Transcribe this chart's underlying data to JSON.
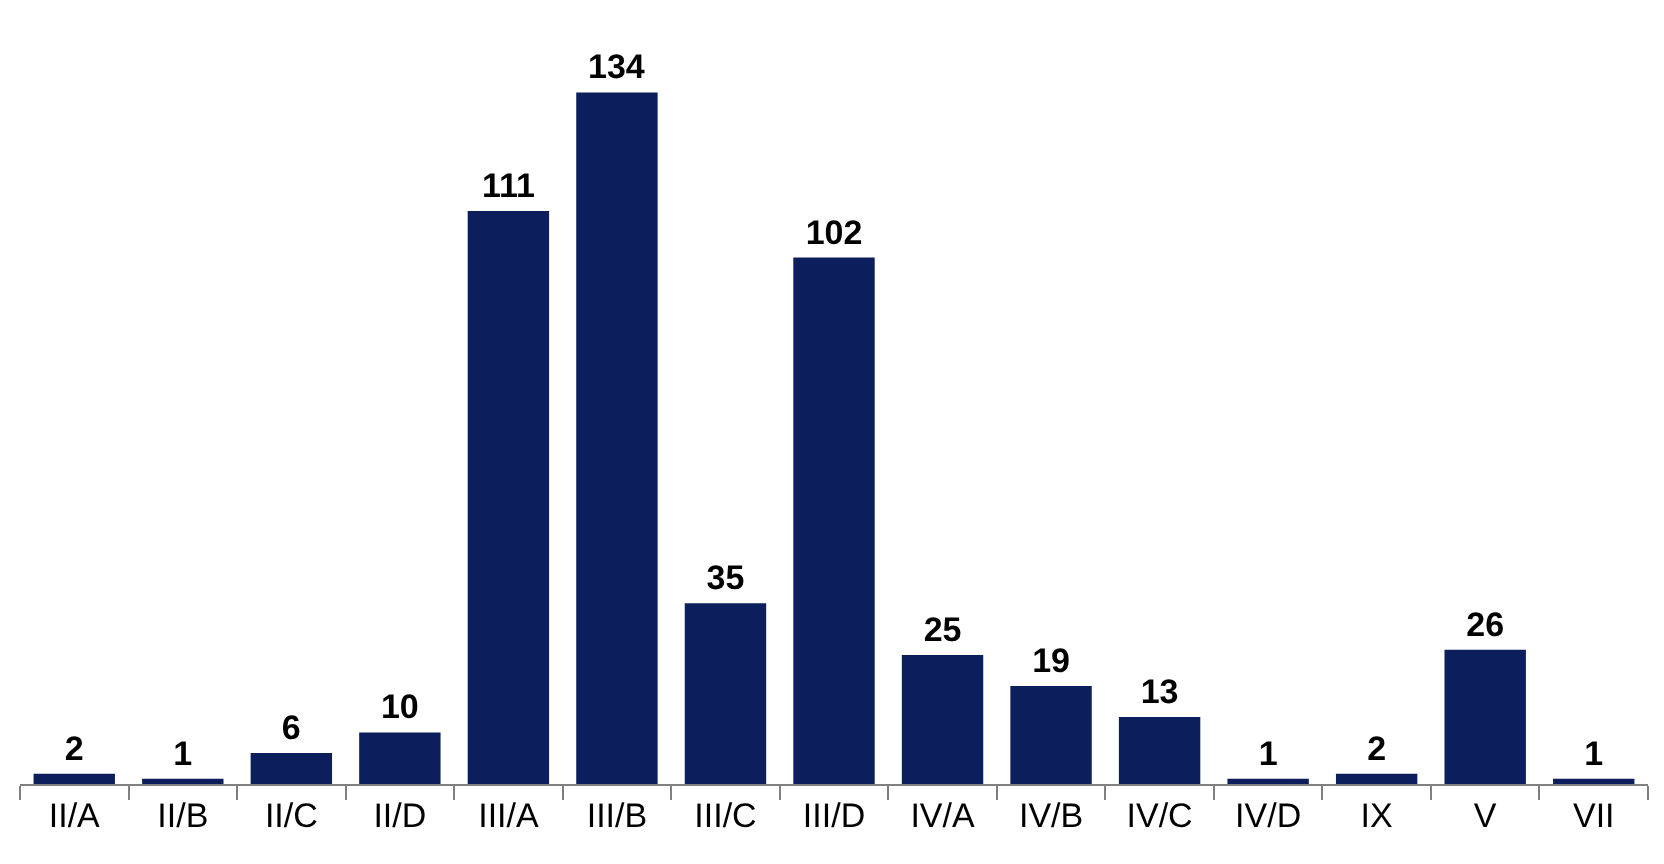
{
  "chart_data": {
    "type": "bar",
    "categories": [
      "II/A",
      "II/B",
      "II/C",
      "II/D",
      "III/A",
      "III/B",
      "III/C",
      "III/D",
      "IV/A",
      "IV/B",
      "IV/C",
      "IV/D",
      "IX",
      "V",
      "VII"
    ],
    "values": [
      2,
      1,
      6,
      10,
      111,
      134,
      35,
      102,
      25,
      19,
      13,
      1,
      2,
      26,
      1
    ],
    "color": "#0c1f5c",
    "data_labels": true
  }
}
